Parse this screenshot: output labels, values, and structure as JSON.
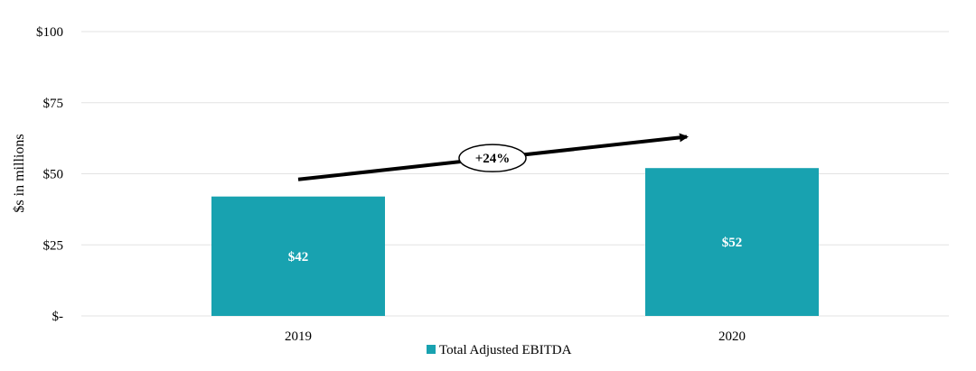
{
  "chart_data": {
    "type": "bar",
    "categories": [
      "2019",
      "2020"
    ],
    "series": [
      {
        "name": "Total Adjusted EBITDA",
        "values": [
          42,
          52
        ],
        "color": "#18a2b0"
      }
    ],
    "data_labels": [
      "$42",
      "$52"
    ],
    "ylabel": "$s in millions",
    "ylim": [
      0,
      100
    ],
    "yticks": [
      0,
      25,
      50,
      75,
      100
    ],
    "ytick_labels": [
      "$-",
      "$25",
      "$50",
      "$75",
      "$100"
    ],
    "grid": true,
    "legend": "bottom",
    "annotation": {
      "text": "+24%",
      "arrow_from": {
        "category": "2019",
        "value": 48
      },
      "arrow_to": {
        "category": "2020",
        "value": 63
      }
    }
  }
}
